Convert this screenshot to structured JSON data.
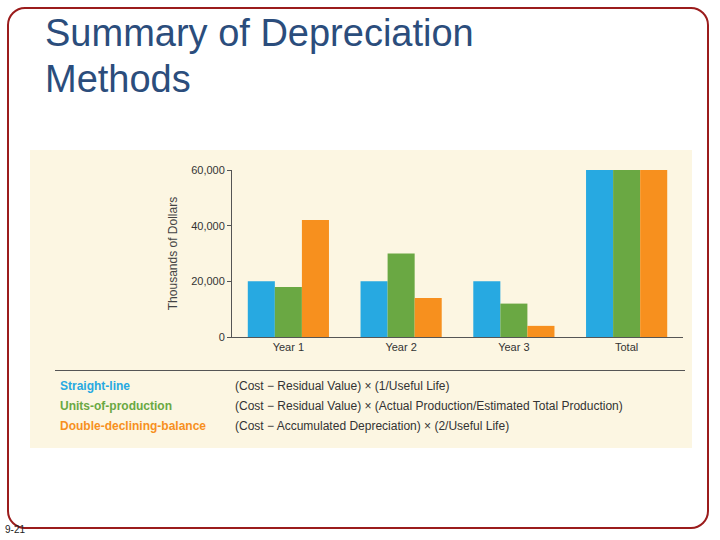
{
  "title": "Summary of Depreciation Methods",
  "page_number": "9-21",
  "chart_data": {
    "type": "bar",
    "ylabel": "Thousands of Dollars",
    "categories": [
      "Year 1",
      "Year 2",
      "Year 3",
      "Total"
    ],
    "series": [
      {
        "name": "Straight-line",
        "color": "#27a9e1",
        "values": [
          20000,
          20000,
          20000,
          60000
        ],
        "formula": "(Cost − Residual Value) × (1/Useful Life)"
      },
      {
        "name": "Units-of-production",
        "color": "#6aa843",
        "values": [
          18000,
          30000,
          12000,
          60000
        ],
        "formula": "(Cost − Residual Value) × (Actual Production/Estimated Total Production)"
      },
      {
        "name": "Double-declining-balance",
        "color": "#f7901e",
        "values": [
          42000,
          14000,
          4000,
          60000
        ],
        "formula": "(Cost − Accumulated Depreciation) × (2/Useful Life)"
      }
    ],
    "ylim": [
      0,
      60000
    ],
    "yticks": [
      0,
      {
        "value": 20000,
        "label": "20,000"
      },
      {
        "value": 40000,
        "label": "40,000"
      },
      {
        "value": 60000,
        "label": "60,000"
      }
    ],
    "grid": false
  }
}
